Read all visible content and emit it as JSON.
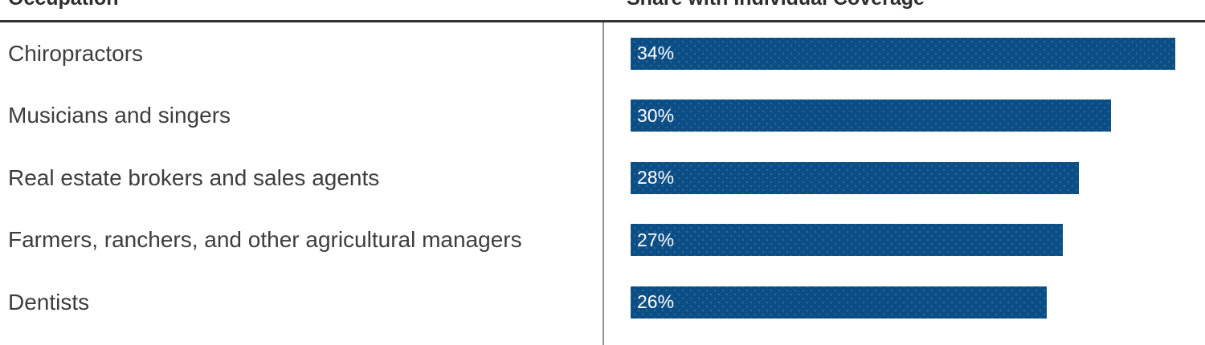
{
  "headers": {
    "occupation": "Occupation",
    "share": "Share with Individual Coverage"
  },
  "chart_data": {
    "type": "bar",
    "orientation": "horizontal",
    "title": "",
    "xlabel": "Share with Individual Coverage",
    "ylabel": "Occupation",
    "categories": [
      "Chiropractors",
      "Musicians and singers",
      "Real estate brokers and sales agents",
      "Farmers, ranchers, and other agricultural managers",
      "Dentists"
    ],
    "values": [
      34,
      30,
      28,
      27,
      26
    ],
    "value_labels": [
      "34%",
      "30%",
      "28%",
      "27%",
      "26%"
    ],
    "xlim": [
      0,
      34
    ],
    "grid": false,
    "legend": false,
    "value_label_position": "inside-left"
  },
  "colors": {
    "bar_fill": "#0b4d85",
    "bar_value_text": "#ffffff",
    "category_text": "#3d3d3d",
    "header_text": "#2e2e2e",
    "top_rule": "#333333",
    "column_divider": "#929292",
    "background": "#ffffff"
  }
}
